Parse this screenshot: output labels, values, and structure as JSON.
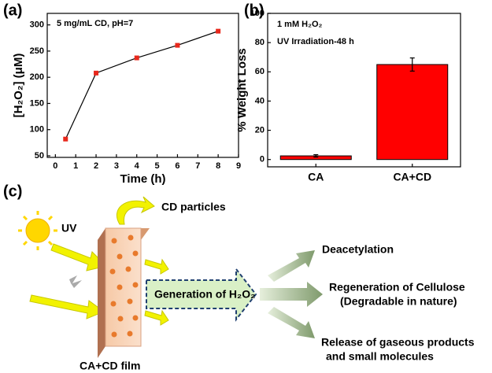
{
  "chart_data": [
    {
      "type": "line",
      "panel_label": "(a)",
      "annotation": "5 mg/mL CD, pH=7",
      "x_label": "Time (h)",
      "y_label": "[H₂O₂] (μM)",
      "x": [
        0.5,
        2,
        4,
        6,
        8
      ],
      "values": [
        82,
        208,
        237,
        261,
        288
      ],
      "color": "#e8281c",
      "line_color": "#000000",
      "xlim": [
        -0.4,
        9
      ],
      "xticks": [
        0,
        1,
        2,
        3,
        4,
        5,
        6,
        7,
        8,
        9
      ],
      "ylim": [
        47,
        322
      ],
      "yticks": [
        50,
        100,
        150,
        200,
        250,
        300
      ]
    },
    {
      "type": "bar",
      "panel_label": "(b)",
      "annotations": [
        "1 mM H₂O₂",
        "UV Irradiation-48 h"
      ],
      "y_label": "% Weight Loss",
      "categories": [
        "CA",
        "CA+CD"
      ],
      "values": [
        2.5,
        65
      ],
      "errors": [
        0.8,
        4.5
      ],
      "color": "#ff0000",
      "ylim": [
        -5,
        100
      ],
      "yticks": [
        0,
        20,
        40,
        60,
        80,
        100
      ]
    }
  ],
  "diagram": {
    "panel_label": "(c)",
    "uv": "UV",
    "particles": "CD particles",
    "film": "CA+CD film",
    "center": "Generation of H₂O₂",
    "outcomes": [
      "Deacetylation",
      "Regeneration of Cellulose",
      "(Degradable in nature)",
      "Release of gaseous products",
      "and small molecules"
    ]
  }
}
